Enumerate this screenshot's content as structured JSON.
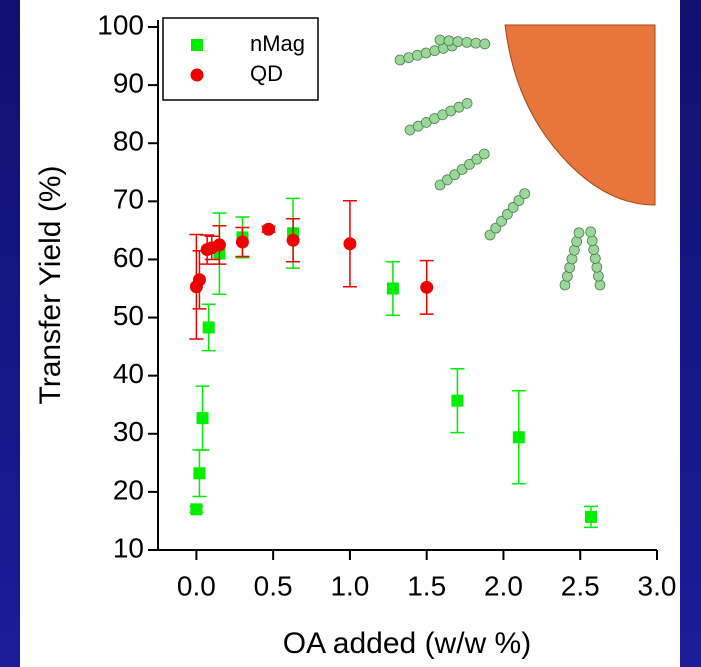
{
  "chart_data": {
    "type": "scatter",
    "xlabel": "OA added (w/w %)",
    "ylabel": "Transfer Yield (%)",
    "xlim": [
      -0.25,
      3.0
    ],
    "ylim": [
      10,
      100
    ],
    "xticks": [
      {
        "value": 0,
        "label": "0.0"
      },
      {
        "value": 0.5,
        "label": "0.5"
      },
      {
        "value": 1,
        "label": "1.0"
      },
      {
        "value": 1.5,
        "label": "1.5"
      },
      {
        "value": 2,
        "label": "2.0"
      },
      {
        "value": 2.5,
        "label": "2.5"
      },
      {
        "value": 3,
        "label": "3.0"
      }
    ],
    "yticks": [
      10,
      20,
      30,
      40,
      50,
      60,
      70,
      80,
      90,
      100
    ],
    "legend": "upper left",
    "series": [
      {
        "name": "nMag",
        "color": "#00ee00",
        "marker": "square",
        "x": [
          0.0,
          0.02,
          0.04,
          0.08,
          0.15,
          0.3,
          0.63,
          1.28,
          1.7,
          2.1,
          2.57
        ],
        "values": [
          17,
          23.2,
          32.7,
          48.3,
          61,
          63.8,
          64.5,
          55,
          35.7,
          29.4,
          15.7
        ],
        "errors": [
          0.5,
          4,
          5.5,
          4,
          7,
          3.5,
          6,
          4.6,
          5.5,
          8,
          1.8
        ]
      },
      {
        "name": "QD",
        "color": "#ee0000",
        "marker": "circle",
        "x": [
          0.0,
          0.02,
          0.07,
          0.1,
          0.15,
          0.3,
          0.47,
          0.63,
          1.0,
          1.5
        ],
        "values": [
          55.3,
          56.5,
          61.7,
          62,
          62.5,
          63,
          65.2,
          63.3,
          62.7,
          55.2
        ],
        "errors": [
          9,
          5,
          2.5,
          2,
          3.3,
          2.5,
          0.5,
          3.7,
          7.4,
          4.6
        ]
      }
    ]
  }
}
